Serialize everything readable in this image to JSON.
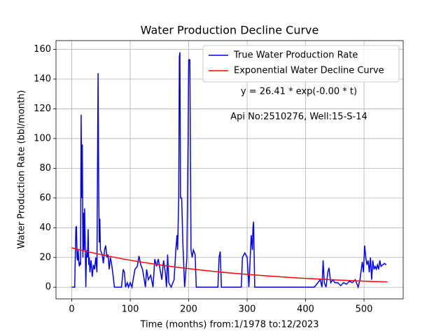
{
  "chart_data": {
    "type": "line",
    "title": "Water Production Decline Curve",
    "xlabel": "Time (months) from:1/1978 to:12/2023",
    "ylabel": "Water Production Rate (bbl/month)",
    "annotations": [
      "y = 26.41 * exp(-0.00 * t)",
      "Api No:2510276, Well:15-S-14"
    ],
    "xlim": [
      -27,
      567
    ],
    "ylim": [
      -7.9,
      165.9
    ],
    "xticks": [
      0,
      100,
      200,
      300,
      400,
      500
    ],
    "yticks": [
      0,
      20,
      40,
      60,
      80,
      100,
      120,
      140,
      160
    ],
    "grid": true,
    "legend": "upper right",
    "series": [
      {
        "name": "True Water Production Rate",
        "color": "#0000ff",
        "x": [
          0,
          5,
          7,
          8,
          9,
          10,
          11,
          12,
          13,
          14,
          15,
          16,
          17,
          18,
          19,
          20,
          21,
          22,
          23,
          24,
          25,
          26,
          27,
          28,
          29,
          30,
          31,
          33,
          35,
          37,
          39,
          41,
          43,
          45,
          46,
          47,
          48,
          49,
          52,
          54,
          56,
          58,
          60,
          62,
          64,
          66,
          68,
          70,
          73,
          85,
          88,
          90,
          92,
          95,
          97,
          100,
          103,
          105,
          108,
          112,
          115,
          118,
          121,
          124,
          126,
          128,
          131,
          135,
          139,
          142,
          145,
          148,
          151,
          154,
          157,
          160,
          162,
          164,
          166,
          170,
          175,
          178,
          180,
          181,
          183,
          184,
          185,
          186,
          188,
          190,
          193,
          197,
          199,
          200,
          202,
          204,
          206,
          208,
          211,
          213,
          250,
          252,
          254,
          256,
          290,
          292,
          296,
          300,
          303,
          307,
          309,
          310,
          311,
          313,
          405,
          415,
          425,
          428,
          430,
          432,
          435,
          438,
          440,
          443,
          447,
          450,
          455,
          460,
          465,
          470,
          475,
          480,
          485,
          490,
          493,
          497,
          499,
          501,
          503,
          505,
          507,
          509,
          511,
          513,
          515,
          517,
          519,
          521,
          523,
          525,
          527,
          529,
          532,
          535,
          538
        ],
        "values": [
          0,
          0,
          40,
          41,
          20,
          18,
          25,
          17,
          14,
          16,
          15,
          116,
          60,
          96,
          20,
          50,
          25,
          53,
          30,
          0,
          20,
          25,
          20,
          39,
          15,
          20,
          10,
          18,
          7,
          15,
          12,
          20,
          10,
          144,
          70,
          30,
          46,
          25,
          22,
          16,
          25,
          28,
          20,
          22,
          12,
          20,
          16,
          10,
          0,
          0,
          12,
          10,
          0,
          3,
          0,
          3,
          0,
          5,
          12,
          14,
          21,
          15,
          12,
          5,
          0,
          12,
          5,
          8,
          0,
          19,
          14,
          19,
          12,
          5,
          18,
          10,
          0,
          22,
          3,
          0,
          5,
          25,
          35,
          25,
          60,
          155,
          158,
          60,
          60,
          30,
          0,
          20,
          100,
          153,
          153,
          25,
          20,
          25,
          22,
          0,
          0,
          20,
          24,
          0,
          0,
          20,
          23,
          20,
          0,
          35,
          25,
          40,
          44,
          0,
          0,
          0,
          5,
          0,
          18,
          3,
          0,
          10,
          13,
          3,
          5,
          3,
          3,
          1,
          3,
          2,
          4,
          3,
          5,
          0,
          5,
          17,
          10,
          28,
          20,
          15,
          18,
          10,
          20,
          5,
          18,
          12,
          14,
          12,
          15,
          12,
          18,
          14,
          15,
          16,
          15
        ]
      },
      {
        "name": "Exponential Water Decline Curve",
        "color": "#ff0000",
        "x": [
          0,
          30,
          60,
          90,
          120,
          150,
          180,
          210,
          240,
          270,
          300,
          330,
          360,
          390,
          420,
          450,
          480,
          510,
          540
        ],
        "values": [
          26.41,
          23.6,
          21.1,
          18.8,
          16.8,
          15.0,
          13.4,
          12.0,
          10.7,
          9.6,
          8.6,
          7.7,
          6.9,
          6.1,
          5.5,
          4.9,
          4.4,
          3.9,
          3.5
        ]
      }
    ]
  }
}
